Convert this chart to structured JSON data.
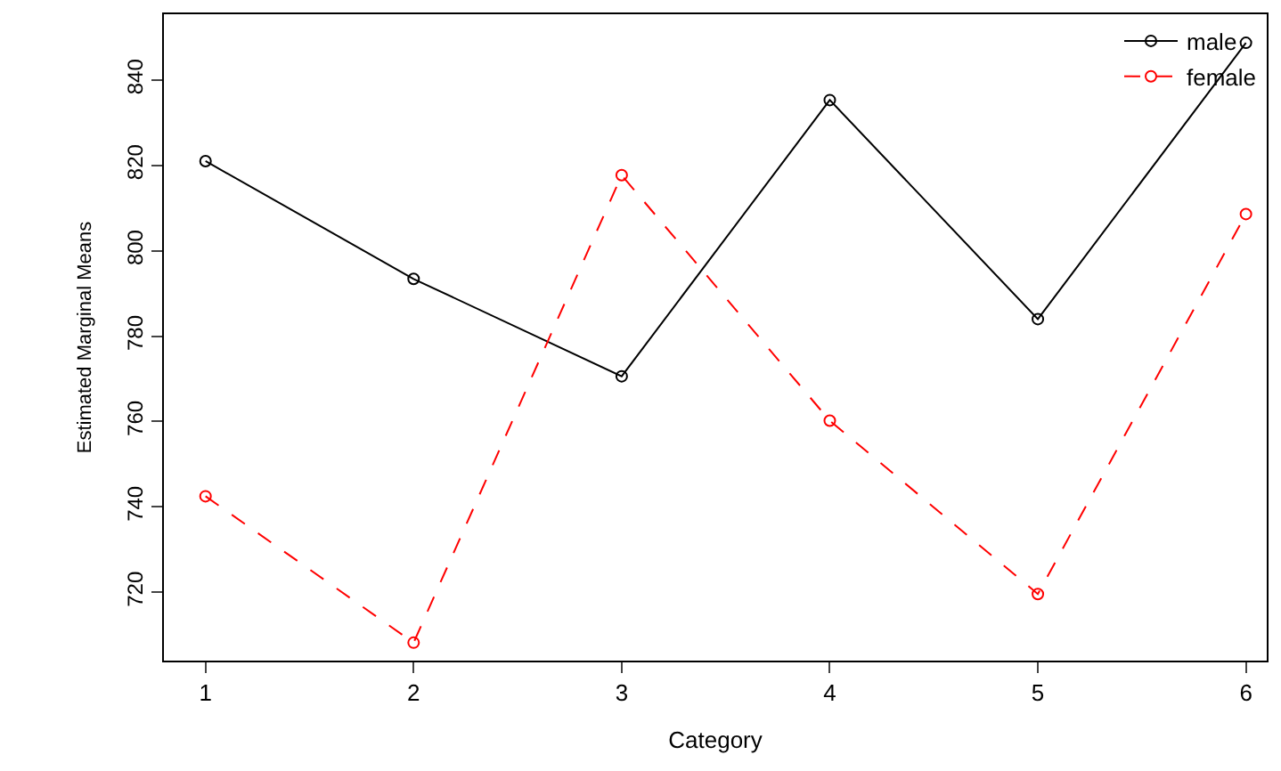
{
  "chart_data": {
    "type": "line",
    "xlabel": "Category",
    "ylabel": "Estimated Marginal Means",
    "x": [
      1,
      2,
      3,
      4,
      5,
      6
    ],
    "series": [
      {
        "name": "male",
        "color": "#000000",
        "line_style": "solid",
        "values": [
          821,
          793.4,
          770.6,
          835.3,
          784,
          848.7
        ]
      },
      {
        "name": "female",
        "color": "#ff0000",
        "line_style": "dashed",
        "values": [
          742.5,
          708.2,
          817.7,
          760.2,
          719.6,
          808.6
        ]
      }
    ],
    "xlim": [
      0.8,
      6.1
    ],
    "xticks": [
      1,
      2,
      3,
      4,
      5,
      6
    ],
    "ylim": [
      704,
      855.4
    ],
    "yticks": [
      720,
      740,
      760,
      780,
      800,
      820,
      840
    ],
    "marker": "circle",
    "legend": "top right"
  }
}
